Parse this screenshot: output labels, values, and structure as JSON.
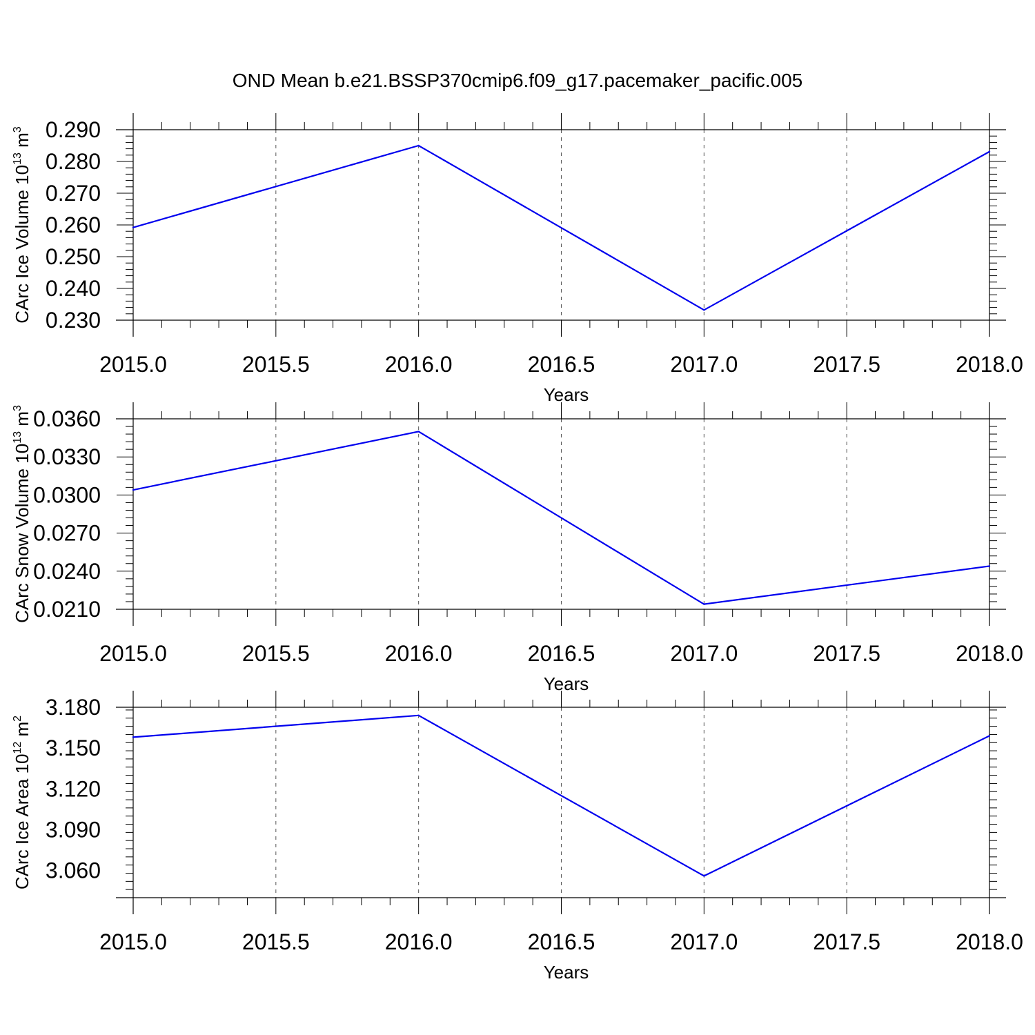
{
  "title": "OND Mean b.e21.BSSP370cmip6.f09_g17.pacemaker_pacific.005",
  "colors": {
    "line": "#0000ee",
    "axis": "#000000",
    "grid": "#555555"
  },
  "chart_data": [
    {
      "type": "line",
      "name": "ice-volume",
      "ylabel": "CArc Ice Volume 10",
      "ylabel_exp": "13",
      "ylabel_unit": " m",
      "ylabel_unit_exp": "3",
      "xlabel": "Years",
      "xlim": [
        2015.0,
        2018.0
      ],
      "ylim": [
        0.23,
        0.29
      ],
      "x_ticks": [
        "2015.0",
        "2015.5",
        "2016.0",
        "2016.5",
        "2017.0",
        "2017.5",
        "2018.0"
      ],
      "y_ticks": [
        "0.290",
        "0.280",
        "0.270",
        "0.260",
        "0.250",
        "0.240",
        "0.230"
      ],
      "x": [
        2015,
        2016,
        2017,
        2018
      ],
      "values": [
        0.2592,
        0.285,
        0.2332,
        0.2831
      ],
      "grid": "vertical dashed at x ticks"
    },
    {
      "type": "line",
      "name": "snow-volume",
      "ylabel": "CArc Snow Volume 10",
      "ylabel_exp": "13",
      "ylabel_unit": " m",
      "ylabel_unit_exp": "3",
      "xlabel": "Years",
      "xlim": [
        2015.0,
        2018.0
      ],
      "ylim": [
        0.021,
        0.036
      ],
      "x_ticks": [
        "2015.0",
        "2015.5",
        "2016.0",
        "2016.5",
        "2017.0",
        "2017.5",
        "2018.0"
      ],
      "y_ticks": [
        "0.0360",
        "0.0330",
        "0.0300",
        "0.0270",
        "0.0240",
        "0.0210"
      ],
      "x": [
        2015,
        2016,
        2017,
        2018
      ],
      "values": [
        0.0304,
        0.035,
        0.0214,
        0.0244
      ],
      "grid": "vertical dashed at x ticks"
    },
    {
      "type": "line",
      "name": "ice-area",
      "ylabel": "CArc Ice Area 10",
      "ylabel_exp": "12",
      "ylabel_unit": " m",
      "ylabel_unit_exp": "2",
      "xlabel": "Years",
      "xlim": [
        2015.0,
        2018.0
      ],
      "ylim": [
        3.04,
        3.18
      ],
      "x_ticks": [
        "2015.0",
        "2015.5",
        "2016.0",
        "2016.5",
        "2017.0",
        "2017.5",
        "2018.0"
      ],
      "y_ticks": [
        "3.180",
        "3.150",
        "3.120",
        "3.090",
        "3.060"
      ],
      "x": [
        2015,
        2016,
        2017,
        2018
      ],
      "values": [
        3.158,
        3.174,
        3.056,
        3.159
      ],
      "grid": "vertical dashed at x ticks"
    }
  ]
}
